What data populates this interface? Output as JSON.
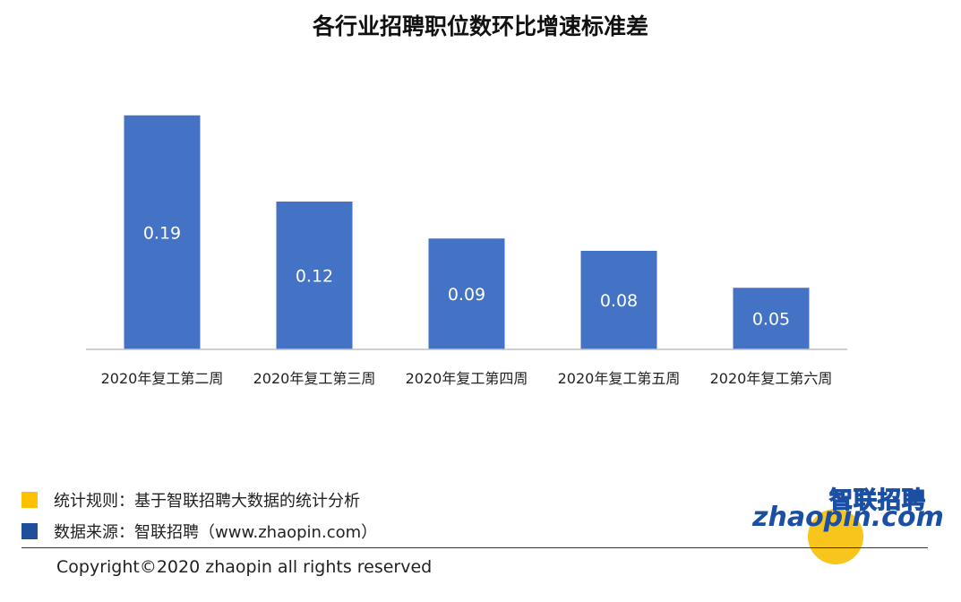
{
  "chart_data": {
    "type": "bar",
    "title": "各行业招聘职位数环比增速标准差",
    "categories": [
      "2020年复工第二周",
      "2020年复工第三周",
      "2020年复工第四周",
      "2020年复工第五周",
      "2020年复工第六周"
    ],
    "values": [
      0.19,
      0.12,
      0.09,
      0.08,
      0.05
    ],
    "value_labels": [
      "0.19",
      "0.12",
      "0.09",
      "0.08",
      "0.05"
    ],
    "ylim": [
      0,
      0.2
    ],
    "grid": false,
    "legend": "none",
    "bar_color": "#4472c4"
  },
  "footer": {
    "rule_label": "统计规则：基于智联招聘大数据的统计分析",
    "source_label": "数据来源：智联招聘（www.zhaopin.com）",
    "rule_color": "#ffc000",
    "source_color": "#1f4e9c",
    "copyright": "Copyright©2020 zhaopin all rights reserved"
  },
  "logo": {
    "cn": "智联招聘",
    "en": "zhaopin.com"
  }
}
